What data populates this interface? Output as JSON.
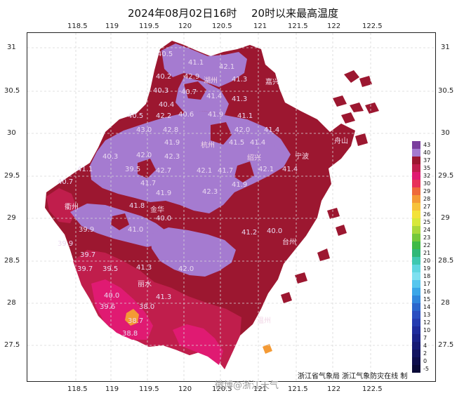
{
  "title": {
    "date": "2024年08月02日16时",
    "description": "20时以来最高温度"
  },
  "axes": {
    "x_labels": [
      "118.5",
      "119",
      "119.5",
      "120",
      "120.5",
      "121",
      "121.5",
      "122",
      "122.5"
    ],
    "y_labels": [
      "31",
      "30.5",
      "30",
      "29.5",
      "29",
      "28.5",
      "28",
      "27.5"
    ]
  },
  "legend": {
    "entries": [
      {
        "label": "43",
        "color": "#7b3f9e"
      },
      {
        "label": "40",
        "color": "#a57bd0"
      },
      {
        "label": "37",
        "color": "#9c1730"
      },
      {
        "label": "35",
        "color": "#c01e4c"
      },
      {
        "label": "32",
        "color": "#e01a72"
      },
      {
        "label": "30",
        "color": "#e8325a"
      },
      {
        "label": "29",
        "color": "#ee6a3a"
      },
      {
        "label": "28",
        "color": "#f49a35"
      },
      {
        "label": "27",
        "color": "#f7c23a"
      },
      {
        "label": "26",
        "color": "#f3e23a"
      },
      {
        "label": "25",
        "color": "#d7e83a"
      },
      {
        "label": "24",
        "color": "#a9d83a"
      },
      {
        "label": "23",
        "color": "#74c83a"
      },
      {
        "label": "22",
        "color": "#3fba46"
      },
      {
        "label": "21",
        "color": "#2fb878"
      },
      {
        "label": "20",
        "color": "#3ec8b0"
      },
      {
        "label": "19",
        "color": "#5fd6e0"
      },
      {
        "label": "18",
        "color": "#7ee0f0"
      },
      {
        "label": "17",
        "color": "#56c6ee"
      },
      {
        "label": "16",
        "color": "#3aa6e8"
      },
      {
        "label": "15",
        "color": "#2f86dc"
      },
      {
        "label": "14",
        "color": "#2a66cc"
      },
      {
        "label": "13",
        "color": "#2a4ec0"
      },
      {
        "label": "12",
        "color": "#253cb0"
      },
      {
        "label": "10",
        "color": "#1f2c9c"
      },
      {
        "label": "7",
        "color": "#1a2288"
      },
      {
        "label": "4",
        "color": "#161a74"
      },
      {
        "label": "2",
        "color": "#121460"
      },
      {
        "label": "0",
        "color": "#0e0e4c"
      },
      {
        "label": "-5",
        "color": "#0a0a38"
      }
    ]
  },
  "map_values": [
    "40.5",
    "41.1",
    "42.1",
    "40.2",
    "42.9",
    "41.3",
    "40.3",
    "40.7",
    "41.4",
    "41.3",
    "40.4",
    "40.5",
    "42.2",
    "40.6",
    "41.9",
    "41.1",
    "43.0",
    "42.8",
    "42.0",
    "41.4",
    "41.4",
    "41.9",
    "42.0",
    "42.3",
    "41.5",
    "40.3",
    "39.5",
    "41.1",
    "42.7",
    "42.1",
    "41.7",
    "42.1",
    "41.4",
    "41.7",
    "40.7",
    "41.8",
    "41.9",
    "42.3",
    "41.9",
    "40.0",
    "39.9",
    "41.0",
    "40.0",
    "41.2",
    "39.9",
    "39.7",
    "41.3",
    "42.0",
    "39.7",
    "39.5",
    "41.3",
    "40.0",
    "38.0",
    "39.6",
    "38.7",
    "38.8"
  ],
  "place_names": [
    "湖州",
    "嘉兴",
    "杭州",
    "绍兴",
    "宁波",
    "舟山",
    "衢州",
    "金华",
    "台州",
    "丽水",
    "温州"
  ],
  "credit": "浙江省气象局  浙江气象防灾在线  制",
  "watermark": "微博@浙江天气"
}
